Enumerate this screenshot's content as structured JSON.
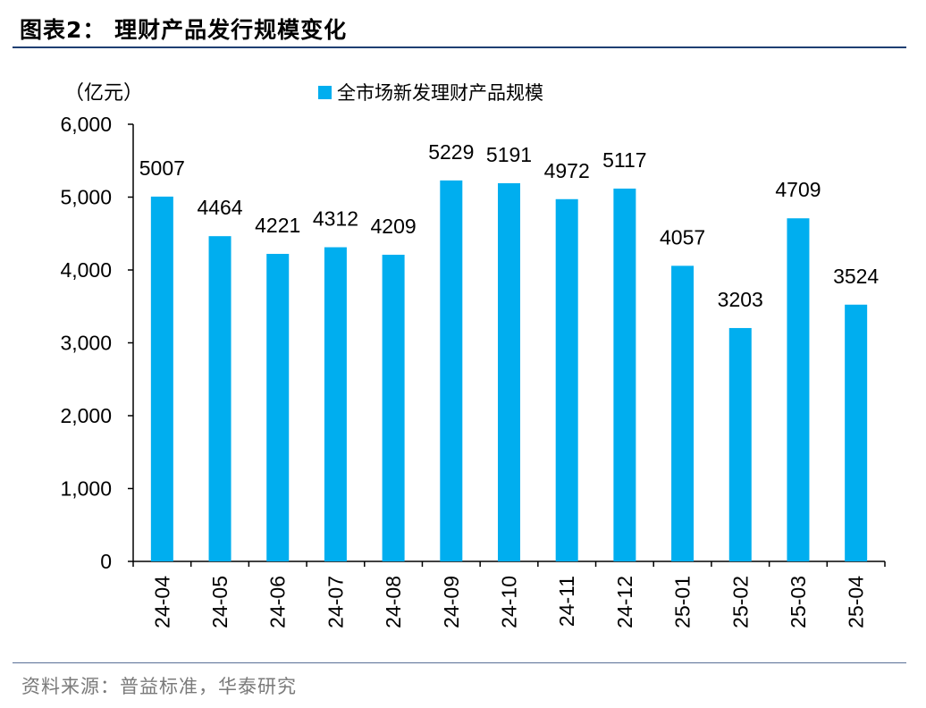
{
  "header": {
    "title": "图表2：  理财产品发行规模变化"
  },
  "footer": {
    "source": "资料来源：普益标准，华泰研究"
  },
  "chart_data": {
    "type": "bar",
    "unit_label": "（亿元）",
    "categories": [
      "24-04",
      "24-05",
      "24-06",
      "24-07",
      "24-08",
      "24-09",
      "24-10",
      "24-11",
      "24-12",
      "25-01",
      "25-02",
      "25-03",
      "25-04"
    ],
    "series": [
      {
        "name": "全市场新发理财产品规模",
        "values": [
          5007,
          4464,
          4221,
          4312,
          4209,
          5229,
          5191,
          4972,
          5117,
          4057,
          3203,
          4709,
          3524
        ],
        "labels": [
          "5007",
          "4464",
          "4221",
          "4312",
          "4209",
          "5229",
          "5191",
          "4972",
          "5117",
          "4057",
          "3203",
          "4709",
          "3524"
        ],
        "color": "#00aeef"
      }
    ],
    "ylim": [
      0,
      6000
    ],
    "yticks": [
      0,
      1000,
      2000,
      3000,
      4000,
      5000,
      6000
    ],
    "ytick_labels": [
      "0",
      "1,000",
      "2,000",
      "3,000",
      "4,000",
      "5,000",
      "6,000"
    ],
    "xlabel": "",
    "ylabel": "",
    "legend_position": "top",
    "grid": false
  }
}
